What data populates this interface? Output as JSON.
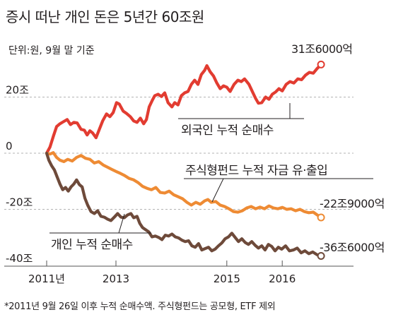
{
  "title": "증시 떠난 개인 돈은 5년간 60조원",
  "unit_note": "단위:원, 9월 말 기준",
  "footnote": "*2011년 9월 26일 이후 누적 순매수액. 주식형펀드는 공모형, ETF 제외",
  "colors": {
    "foreign": "#e23c31",
    "fund": "#ee8b34",
    "individual": "#6e4a3a",
    "grid": "#9a9a9a",
    "text": "#231f20"
  },
  "chart_data": {
    "type": "line",
    "x_ticks": [
      {
        "x": 2011.75,
        "label": "2011년"
      },
      {
        "x": 2013.0,
        "label": "2013"
      },
      {
        "x": 2015.0,
        "label": "2015"
      },
      {
        "x": 2016.0,
        "label": "2016"
      }
    ],
    "y_ticks": [
      {
        "y": 20,
        "label": "20조"
      },
      {
        "y": 0,
        "label": "0"
      },
      {
        "y": -20,
        "label": "-20조"
      },
      {
        "y": -40,
        "label": "-40조"
      }
    ],
    "xlim": [
      2011.75,
      2016.75
    ],
    "ylim": [
      -40,
      36
    ],
    "grid": "dashed horizontal",
    "series": [
      {
        "name": "외국인 누적 순매수",
        "color": "foreign",
        "end_label": "31조6000억",
        "points": [
          [
            2011.75,
            0.0
          ],
          [
            2011.81,
            2.2
          ],
          [
            2011.87,
            6.0
          ],
          [
            2011.93,
            9.5
          ],
          [
            2011.99,
            10.5
          ],
          [
            2012.05,
            11.2
          ],
          [
            2012.12,
            12.0
          ],
          [
            2012.18,
            10.2
          ],
          [
            2012.24,
            11.0
          ],
          [
            2012.3,
            10.8
          ],
          [
            2012.37,
            8.5
          ],
          [
            2012.43,
            8.2
          ],
          [
            2012.48,
            6.5
          ],
          [
            2012.53,
            8.0
          ],
          [
            2012.58,
            7.2
          ],
          [
            2012.64,
            5.5
          ],
          [
            2012.7,
            8.5
          ],
          [
            2012.76,
            11.5
          ],
          [
            2012.83,
            14.0
          ],
          [
            2012.89,
            13.0
          ],
          [
            2012.95,
            14.5
          ],
          [
            2013.01,
            18.0
          ],
          [
            2013.06,
            17.5
          ],
          [
            2013.13,
            15.0
          ],
          [
            2013.19,
            14.2
          ],
          [
            2013.26,
            13.0
          ],
          [
            2013.32,
            11.5
          ],
          [
            2013.38,
            11.0
          ],
          [
            2013.44,
            12.5
          ],
          [
            2013.5,
            10.5
          ],
          [
            2013.55,
            12.0
          ],
          [
            2013.6,
            16.5
          ],
          [
            2013.66,
            19.0
          ],
          [
            2013.7,
            20.5
          ],
          [
            2013.76,
            21.0
          ],
          [
            2013.82,
            20.2
          ],
          [
            2013.88,
            21.5
          ],
          [
            2013.94,
            18.0
          ],
          [
            2014.01,
            16.5
          ],
          [
            2014.06,
            18.0
          ],
          [
            2014.12,
            17.2
          ],
          [
            2014.18,
            20.5
          ],
          [
            2014.24,
            21.5
          ],
          [
            2014.3,
            22.0
          ],
          [
            2014.36,
            24.5
          ],
          [
            2014.42,
            26.0
          ],
          [
            2014.48,
            24.5
          ],
          [
            2014.54,
            28.0
          ],
          [
            2014.6,
            29.5
          ],
          [
            2014.64,
            31.2
          ],
          [
            2014.7,
            29.0
          ],
          [
            2014.76,
            27.5
          ],
          [
            2014.82,
            25.0
          ],
          [
            2014.88,
            23.0
          ],
          [
            2014.94,
            24.0
          ],
          [
            2015.0,
            23.5
          ],
          [
            2015.06,
            22.0
          ],
          [
            2015.13,
            24.5
          ],
          [
            2015.2,
            26.0
          ],
          [
            2015.26,
            25.5
          ],
          [
            2015.32,
            26.5
          ],
          [
            2015.4,
            24.5
          ],
          [
            2015.46,
            22.0
          ],
          [
            2015.52,
            19.5
          ],
          [
            2015.57,
            17.8
          ],
          [
            2015.63,
            18.0
          ],
          [
            2015.7,
            20.0
          ],
          [
            2015.76,
            19.2
          ],
          [
            2015.82,
            21.0
          ],
          [
            2015.88,
            21.8
          ],
          [
            2015.94,
            23.0
          ],
          [
            2016.0,
            22.2
          ],
          [
            2016.07,
            24.5
          ],
          [
            2016.14,
            25.5
          ],
          [
            2016.21,
            25.0
          ],
          [
            2016.28,
            26.5
          ],
          [
            2016.35,
            26.2
          ],
          [
            2016.42,
            27.8
          ],
          [
            2016.49,
            28.8
          ],
          [
            2016.56,
            28.5
          ],
          [
            2016.63,
            30.2
          ],
          [
            2016.7,
            31.6
          ]
        ]
      },
      {
        "name": "주식형펀드 누적 자금 유·출입",
        "color": "fund",
        "end_label": "-22조9000억",
        "points": [
          [
            2011.75,
            0.0
          ],
          [
            2011.81,
            -0.3
          ],
          [
            2011.87,
            0.2
          ],
          [
            2011.93,
            -1.5
          ],
          [
            2011.99,
            -2.5
          ],
          [
            2012.06,
            -3.0
          ],
          [
            2012.13,
            -2.2
          ],
          [
            2012.21,
            -2.8
          ],
          [
            2012.29,
            -1.5
          ],
          [
            2012.37,
            -0.8
          ],
          [
            2012.45,
            -1.8
          ],
          [
            2012.53,
            -2.2
          ],
          [
            2012.61,
            -3.5
          ],
          [
            2012.69,
            -3.0
          ],
          [
            2012.77,
            -4.2
          ],
          [
            2012.85,
            -5.0
          ],
          [
            2012.93,
            -5.8
          ],
          [
            2013.0,
            -6.5
          ],
          [
            2013.08,
            -7.2
          ],
          [
            2013.16,
            -8.0
          ],
          [
            2013.24,
            -9.0
          ],
          [
            2013.32,
            -9.5
          ],
          [
            2013.4,
            -10.5
          ],
          [
            2013.48,
            -11.8
          ],
          [
            2013.56,
            -12.5
          ],
          [
            2013.64,
            -13.0
          ],
          [
            2013.72,
            -12.2
          ],
          [
            2013.8,
            -14.0
          ],
          [
            2013.88,
            -14.2
          ],
          [
            2013.96,
            -13.5
          ],
          [
            2014.04,
            -14.8
          ],
          [
            2014.12,
            -15.5
          ],
          [
            2014.2,
            -16.2
          ],
          [
            2014.28,
            -17.5
          ],
          [
            2014.36,
            -18.5
          ],
          [
            2014.44,
            -17.5
          ],
          [
            2014.52,
            -18.2
          ],
          [
            2014.6,
            -17.0
          ],
          [
            2014.66,
            -16.5
          ],
          [
            2014.72,
            -17.5
          ],
          [
            2014.8,
            -17.2
          ],
          [
            2014.88,
            -18.5
          ],
          [
            2014.96,
            -19.0
          ],
          [
            2015.04,
            -19.8
          ],
          [
            2015.12,
            -20.8
          ],
          [
            2015.2,
            -21.0
          ],
          [
            2015.28,
            -20.5
          ],
          [
            2015.36,
            -19.5
          ],
          [
            2015.44,
            -19.0
          ],
          [
            2015.52,
            -19.8
          ],
          [
            2015.6,
            -19.2
          ],
          [
            2015.68,
            -19.8
          ],
          [
            2015.76,
            -18.8
          ],
          [
            2015.84,
            -19.5
          ],
          [
            2015.92,
            -19.8
          ],
          [
            2016.0,
            -19.3
          ],
          [
            2016.08,
            -20.0
          ],
          [
            2016.16,
            -19.8
          ],
          [
            2016.24,
            -20.5
          ],
          [
            2016.32,
            -20.0
          ],
          [
            2016.4,
            -20.8
          ],
          [
            2016.48,
            -21.2
          ],
          [
            2016.56,
            -21.0
          ],
          [
            2016.63,
            -22.0
          ],
          [
            2016.7,
            -22.9
          ]
        ]
      },
      {
        "name": "개인 누적 순매수",
        "color": "individual",
        "end_label": "-36조6000억",
        "points": [
          [
            2011.75,
            0.0
          ],
          [
            2011.79,
            -2.5
          ],
          [
            2011.84,
            -4.5
          ],
          [
            2011.89,
            -6.0
          ],
          [
            2011.94,
            -8.5
          ],
          [
            2011.99,
            -11.0
          ],
          [
            2012.04,
            -13.0
          ],
          [
            2012.09,
            -12.2
          ],
          [
            2012.14,
            -13.5
          ],
          [
            2012.19,
            -12.0
          ],
          [
            2012.24,
            -11.0
          ],
          [
            2012.29,
            -9.5
          ],
          [
            2012.34,
            -11.2
          ],
          [
            2012.39,
            -12.0
          ],
          [
            2012.44,
            -16.0
          ],
          [
            2012.49,
            -18.5
          ],
          [
            2012.55,
            -20.8
          ],
          [
            2012.61,
            -21.5
          ],
          [
            2012.67,
            -20.5
          ],
          [
            2012.73,
            -22.5
          ],
          [
            2012.79,
            -22.8
          ],
          [
            2012.85,
            -23.5
          ],
          [
            2012.91,
            -24.0
          ],
          [
            2012.97,
            -22.8
          ],
          [
            2013.03,
            -21.5
          ],
          [
            2013.09,
            -22.8
          ],
          [
            2013.15,
            -23.0
          ],
          [
            2013.21,
            -22.0
          ],
          [
            2013.27,
            -21.5
          ],
          [
            2013.32,
            -23.0
          ],
          [
            2013.38,
            -22.5
          ],
          [
            2013.43,
            -25.0
          ],
          [
            2013.48,
            -26.5
          ],
          [
            2013.53,
            -27.2
          ],
          [
            2013.59,
            -28.0
          ],
          [
            2013.65,
            -29.8
          ],
          [
            2013.71,
            -29.5
          ],
          [
            2013.77,
            -30.0
          ],
          [
            2013.83,
            -30.8
          ],
          [
            2013.89,
            -29.2
          ],
          [
            2013.95,
            -29.5
          ],
          [
            2014.01,
            -28.8
          ],
          [
            2014.07,
            -29.8
          ],
          [
            2014.13,
            -30.2
          ],
          [
            2014.19,
            -31.0
          ],
          [
            2014.25,
            -31.5
          ],
          [
            2014.31,
            -31.2
          ],
          [
            2014.37,
            -33.0
          ],
          [
            2014.43,
            -33.5
          ],
          [
            2014.49,
            -32.2
          ],
          [
            2014.55,
            -34.5
          ],
          [
            2014.61,
            -34.0
          ],
          [
            2014.67,
            -33.5
          ],
          [
            2014.73,
            -34.8
          ],
          [
            2014.79,
            -34.2
          ],
          [
            2014.85,
            -33.0
          ],
          [
            2014.91,
            -32.0
          ],
          [
            2014.97,
            -30.5
          ],
          [
            2015.03,
            -29.8
          ],
          [
            2015.09,
            -28.5
          ],
          [
            2015.15,
            -30.0
          ],
          [
            2015.21,
            -31.5
          ],
          [
            2015.27,
            -30.5
          ],
          [
            2015.33,
            -31.8
          ],
          [
            2015.39,
            -32.5
          ],
          [
            2015.45,
            -31.5
          ],
          [
            2015.51,
            -32.8
          ],
          [
            2015.57,
            -33.8
          ],
          [
            2015.63,
            -33.0
          ],
          [
            2015.69,
            -34.5
          ],
          [
            2015.75,
            -32.5
          ],
          [
            2015.81,
            -33.2
          ],
          [
            2015.87,
            -34.8
          ],
          [
            2015.93,
            -33.5
          ],
          [
            2015.99,
            -34.2
          ],
          [
            2016.06,
            -33.0
          ],
          [
            2016.13,
            -34.8
          ],
          [
            2016.2,
            -34.5
          ],
          [
            2016.27,
            -33.8
          ],
          [
            2016.34,
            -35.5
          ],
          [
            2016.41,
            -34.8
          ],
          [
            2016.48,
            -35.8
          ],
          [
            2016.55,
            -35.2
          ],
          [
            2016.63,
            -36.2
          ],
          [
            2016.7,
            -36.6
          ]
        ]
      }
    ]
  }
}
